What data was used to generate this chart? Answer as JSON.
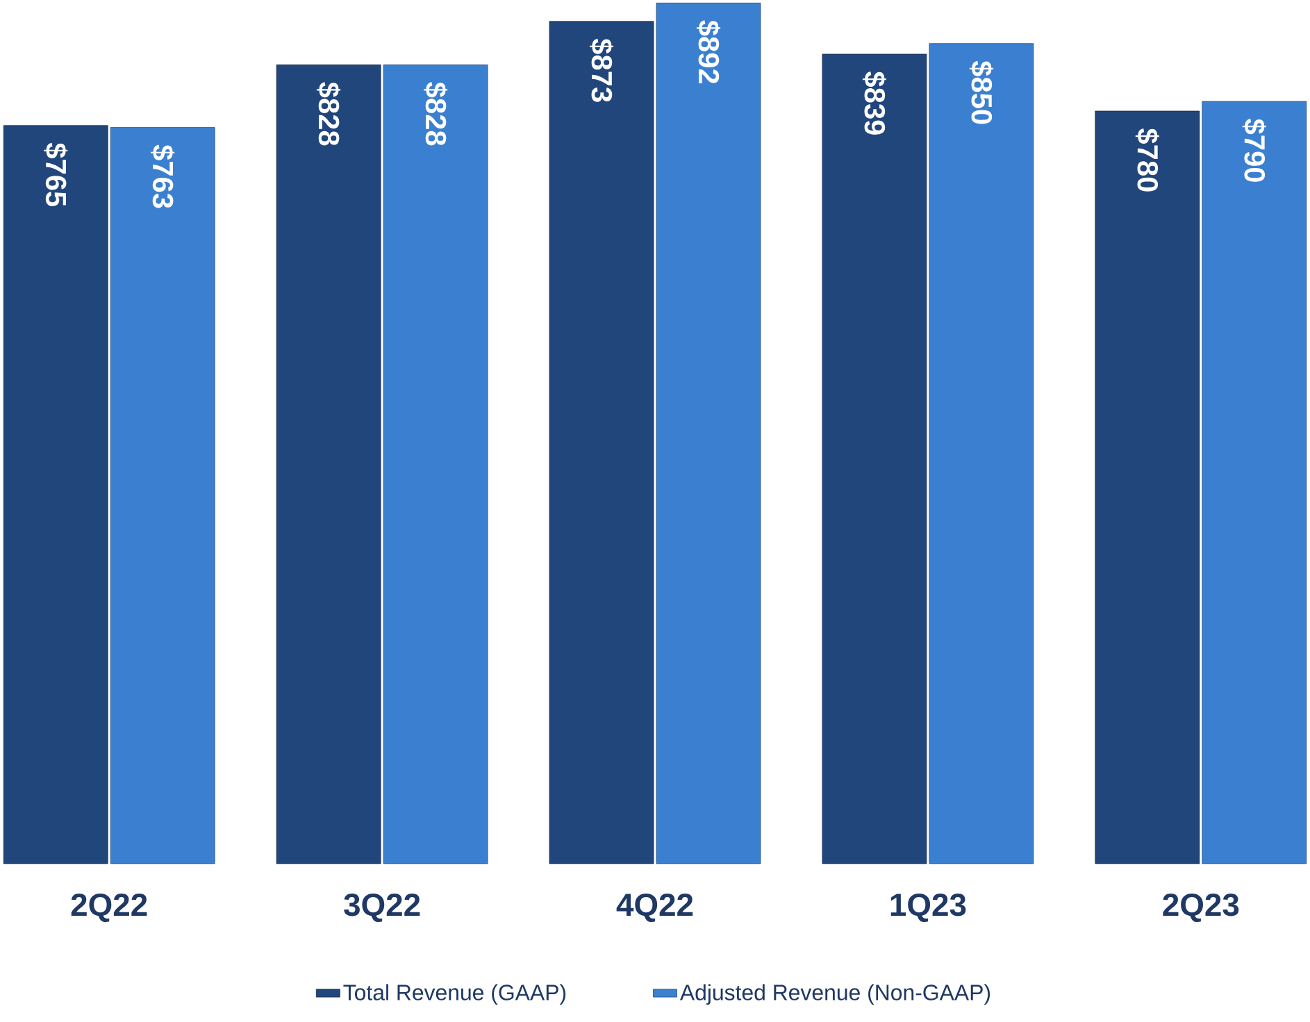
{
  "chart_data": {
    "type": "bar",
    "categories": [
      "2Q22",
      "3Q22",
      "4Q22",
      "1Q23",
      "2Q23"
    ],
    "series": [
      {
        "name": "Total Revenue (GAAP)",
        "color": "#21467c",
        "values": [
          765,
          828,
          873,
          839,
          780
        ],
        "value_labels": [
          "$765",
          "$828",
          "$873",
          "$839",
          "$780"
        ]
      },
      {
        "name": "Adjusted Revenue (Non-GAAP)",
        "color": "#3b80d0",
        "values": [
          763,
          828,
          892,
          850,
          790
        ],
        "value_labels": [
          "$763",
          "$828",
          "$892",
          "$850",
          "$790"
        ]
      }
    ],
    "ylim": [
      0,
      895
    ],
    "tick_labels": "x",
    "legend": "bottom"
  }
}
